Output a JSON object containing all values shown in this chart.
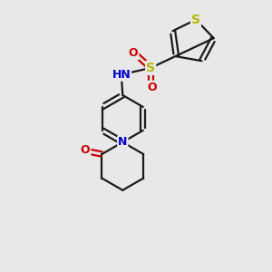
{
  "bg_color": "#e8e8e8",
  "bond_color": "#1a1a1a",
  "S_color": "#b8b800",
  "N_color": "#0000cc",
  "O_color": "#cc0000",
  "line_width": 1.6,
  "figsize": [
    3.0,
    3.0
  ],
  "dpi": 100,
  "xlim": [
    0,
    10
  ],
  "ylim": [
    0,
    10
  ]
}
